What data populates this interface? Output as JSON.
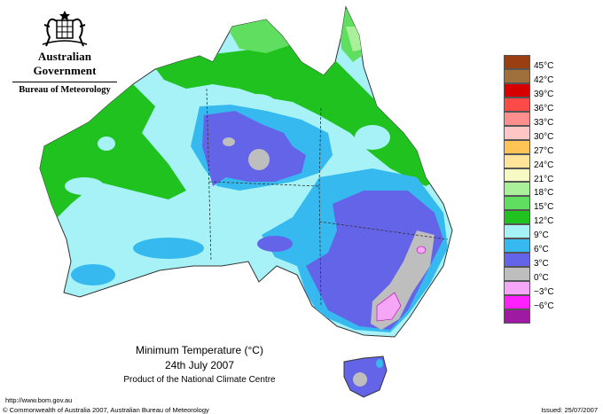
{
  "header": {
    "government": "Australian Government",
    "bureau": "Bureau of Meteorology"
  },
  "map": {
    "title": "Minimum Temperature (°C)",
    "date": "24th July 2007",
    "product": "Product of the National Climate Centre"
  },
  "legend": {
    "items": [
      {
        "label": "45°C",
        "color": "#9b3e12"
      },
      {
        "label": "42°C",
        "color": "#a0703c"
      },
      {
        "label": "39°C",
        "color": "#d60000"
      },
      {
        "label": "36°C",
        "color": "#ff4a4a"
      },
      {
        "label": "33°C",
        "color": "#ff8e8e"
      },
      {
        "label": "30°C",
        "color": "#ffc6c6"
      },
      {
        "label": "27°C",
        "color": "#ffc356"
      },
      {
        "label": "24°C",
        "color": "#ffe49a"
      },
      {
        "label": "21°C",
        "color": "#f5fbc2"
      },
      {
        "label": "18°C",
        "color": "#aaf09b"
      },
      {
        "label": "15°C",
        "color": "#5fde5f"
      },
      {
        "label": "12°C",
        "color": "#1fc21f"
      },
      {
        "label": "9°C",
        "color": "#a6f2f6"
      },
      {
        "label": "6°C",
        "color": "#36b9ef"
      },
      {
        "label": "3°C",
        "color": "#6464e9"
      },
      {
        "label": "0°C",
        "color": "#bebebe"
      },
      {
        "label": "−3°C",
        "color": "#f6a6f6"
      },
      {
        "label": "−6°C",
        "color": "#ff1fff"
      },
      {
        "label": "",
        "color": "#9e1aa2"
      }
    ]
  },
  "footer": {
    "url": "http://www.bom.gov.au",
    "copyright": "© Commonwealth of Australia 2007, Australian Bureau of Meteorology",
    "issued": "Issued: 25/07/2007"
  }
}
